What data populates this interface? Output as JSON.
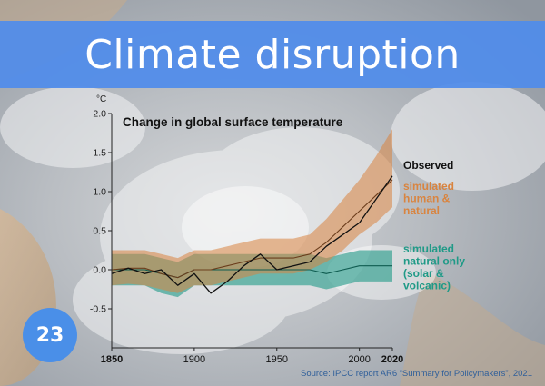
{
  "slide": {
    "title": "Climate disruption",
    "slide_number": "23",
    "source": "Source: IPCC report AR6 “Summary for Policymakers”, 2021"
  },
  "colors": {
    "title_band": "#508ceb",
    "observed": "#111111",
    "human_natural": "#d9843f",
    "natural_only": "#1f9a87",
    "badge": "#4a8fe8"
  },
  "chart_data": {
    "type": "line",
    "title": "Change in global surface temperature",
    "ylabel": "°C",
    "xlim": [
      1850,
      2020
    ],
    "ylim": [
      -1.0,
      2.0
    ],
    "x_ticks": [
      "1850",
      "1900",
      "1950",
      "2000",
      "2020"
    ],
    "y_ticks": [
      "2.0",
      "1.5",
      "1.0",
      "0.5",
      "0.0",
      "-0.5"
    ],
    "x": [
      1850,
      1860,
      1870,
      1880,
      1890,
      1900,
      1910,
      1920,
      1930,
      1940,
      1950,
      1960,
      1970,
      1980,
      1990,
      2000,
      2010,
      2020
    ],
    "series": [
      {
        "name": "Observed",
        "values": [
          -0.05,
          0.02,
          -0.05,
          0.0,
          -0.2,
          -0.05,
          -0.3,
          -0.15,
          0.05,
          0.2,
          0.0,
          0.05,
          0.1,
          0.3,
          0.45,
          0.6,
          0.9,
          1.2
        ]
      },
      {
        "name": "simulated human & natural",
        "values": [
          0.0,
          0.02,
          0.02,
          -0.05,
          -0.1,
          0.0,
          0.0,
          0.05,
          0.1,
          0.15,
          0.15,
          0.15,
          0.2,
          0.35,
          0.55,
          0.75,
          0.95,
          1.15
        ],
        "lower": [
          -0.2,
          -0.18,
          -0.2,
          -0.25,
          -0.3,
          -0.2,
          -0.2,
          -0.15,
          -0.1,
          -0.05,
          -0.05,
          -0.05,
          0.0,
          0.1,
          0.25,
          0.45,
          0.6,
          0.8
        ],
        "upper": [
          0.25,
          0.25,
          0.25,
          0.2,
          0.15,
          0.25,
          0.25,
          0.3,
          0.35,
          0.4,
          0.4,
          0.4,
          0.45,
          0.65,
          0.9,
          1.15,
          1.45,
          1.8
        ]
      },
      {
        "name": "simulated natural only (solar & volcanic)",
        "values": [
          0.0,
          0.0,
          0.0,
          -0.05,
          -0.1,
          0.0,
          0.0,
          0.0,
          0.0,
          0.0,
          0.0,
          0.0,
          0.0,
          -0.05,
          0.0,
          0.05,
          0.05,
          0.05
        ],
        "lower": [
          -0.2,
          -0.2,
          -0.2,
          -0.3,
          -0.35,
          -0.2,
          -0.2,
          -0.2,
          -0.2,
          -0.2,
          -0.2,
          -0.2,
          -0.2,
          -0.25,
          -0.2,
          -0.15,
          -0.15,
          -0.15
        ],
        "upper": [
          0.2,
          0.2,
          0.2,
          0.15,
          0.1,
          0.2,
          0.2,
          0.2,
          0.2,
          0.2,
          0.2,
          0.2,
          0.2,
          0.15,
          0.2,
          0.25,
          0.25,
          0.25
        ]
      }
    ],
    "legend": [
      {
        "lines": [
          "Observed"
        ],
        "color": "#111111"
      },
      {
        "lines": [
          "simulated",
          "human &",
          "natural"
        ],
        "color": "#d9843f"
      },
      {
        "lines": [
          "simulated",
          "natural only",
          "(solar &",
          "volcanic)"
        ],
        "color": "#1f9a87"
      }
    ],
    "legend_placement": "right",
    "grid": false
  }
}
